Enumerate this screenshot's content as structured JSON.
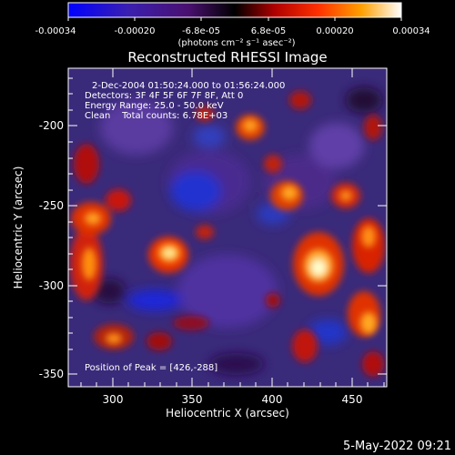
{
  "plot": {
    "title": "Reconstructed RHESSI Image",
    "x_axis_label": "Heliocentric X (arcsec)",
    "y_axis_label": "Heliocentric Y (arcsec)",
    "x_ticks": [
      "300",
      "350",
      "400",
      "450"
    ],
    "y_ticks": [
      "-200",
      "-250",
      "-300",
      "-350"
    ]
  },
  "colorbar": {
    "tick_labels": [
      "-0.00034",
      "-0.00020",
      "-6.8e-05",
      "6.8e-05",
      "0.00020",
      "0.00034"
    ],
    "units_label": "(photons cm⁻² s⁻¹ asec⁻²)",
    "range": [
      -0.00034,
      0.00034
    ],
    "colors": [
      "#0000ff",
      "#4020a0",
      "#400060",
      "#000000",
      "#ff2000",
      "#ffa000",
      "#ffffff"
    ]
  },
  "info": {
    "time_range": "2-Dec-2004 01:50:24.000 to 01:56:24.000",
    "detectors": "Detectors: 3F 4F 5F 6F 7F 8F, Att 0",
    "energy_range": "Energy Range: 25.0 - 50.0 keV",
    "clean_totals": "Clean    Total counts: 6.78E+03",
    "peak_position": "Position of Peak = [426,-288]"
  },
  "footer": {
    "timestamp": "5-May-2022 09:21"
  }
}
